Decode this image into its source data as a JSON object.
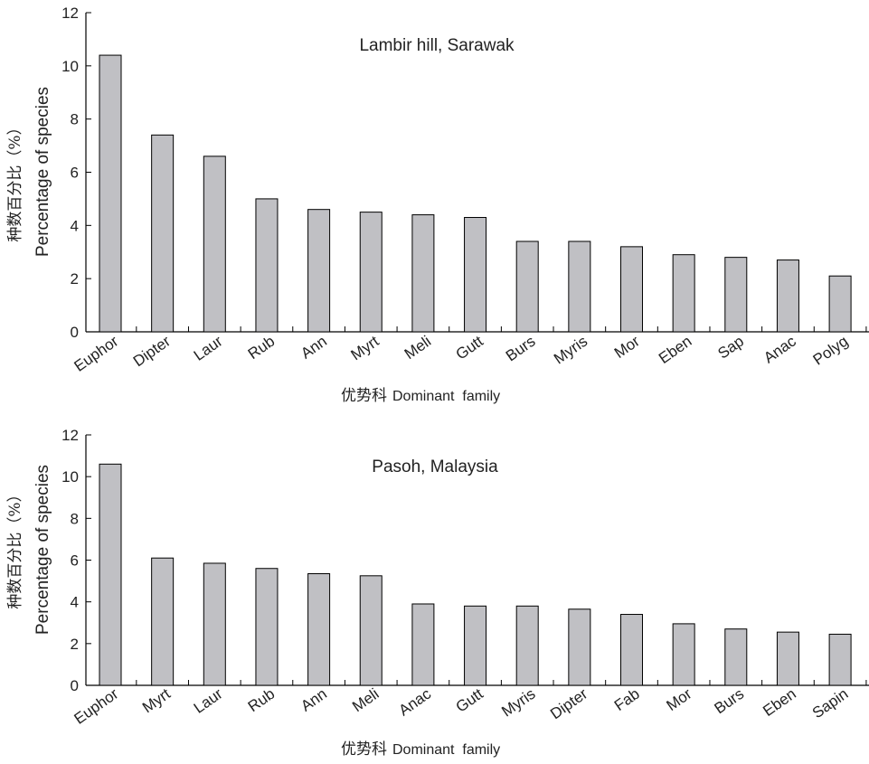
{
  "chart_data": [
    {
      "type": "bar",
      "title": "Lambir hill, Sarawak",
      "xlabel_cn": "优势科",
      "xlabel": "Dominant  family",
      "ylabel_cn": "种数百分比（%）",
      "ylabel": "Percentage of species",
      "ylim": [
        0,
        12
      ],
      "yticks": [
        0,
        2,
        4,
        6,
        8,
        10,
        12
      ],
      "grid": false,
      "categories": [
        "Euphor",
        "Dipter",
        "Laur",
        "Rub",
        "Ann",
        "Myrt",
        "Meli",
        "Gutt",
        "Burs",
        "Myris",
        "Mor",
        "Eben",
        "Sap",
        "Anac",
        "Polyg"
      ],
      "values": [
        10.4,
        7.4,
        6.6,
        5.0,
        4.6,
        4.5,
        4.4,
        4.3,
        3.4,
        3.4,
        3.2,
        2.9,
        2.8,
        2.7,
        2.1
      ],
      "bar_color": "#c0c0c4"
    },
    {
      "type": "bar",
      "title": "Pasoh, Malaysia",
      "xlabel_cn": "优势科",
      "xlabel": "Dominant  family",
      "ylabel_cn": "种数百分比（%）",
      "ylabel": "Percentage of species",
      "ylim": [
        0,
        12
      ],
      "yticks": [
        0,
        2,
        4,
        6,
        8,
        10,
        12
      ],
      "grid": false,
      "categories": [
        "Euphor",
        "Myrt",
        "Laur",
        "Rub",
        "Ann",
        "Meli",
        "Anac",
        "Gutt",
        "Myris",
        "Dipter",
        "Fab",
        "Mor",
        "Burs",
        "Eben",
        "Sapin"
      ],
      "values": [
        10.6,
        6.1,
        5.85,
        5.6,
        5.35,
        5.25,
        3.9,
        3.8,
        3.8,
        3.65,
        3.4,
        2.95,
        2.7,
        2.55,
        2.45
      ],
      "bar_color": "#c0c0c4"
    }
  ]
}
